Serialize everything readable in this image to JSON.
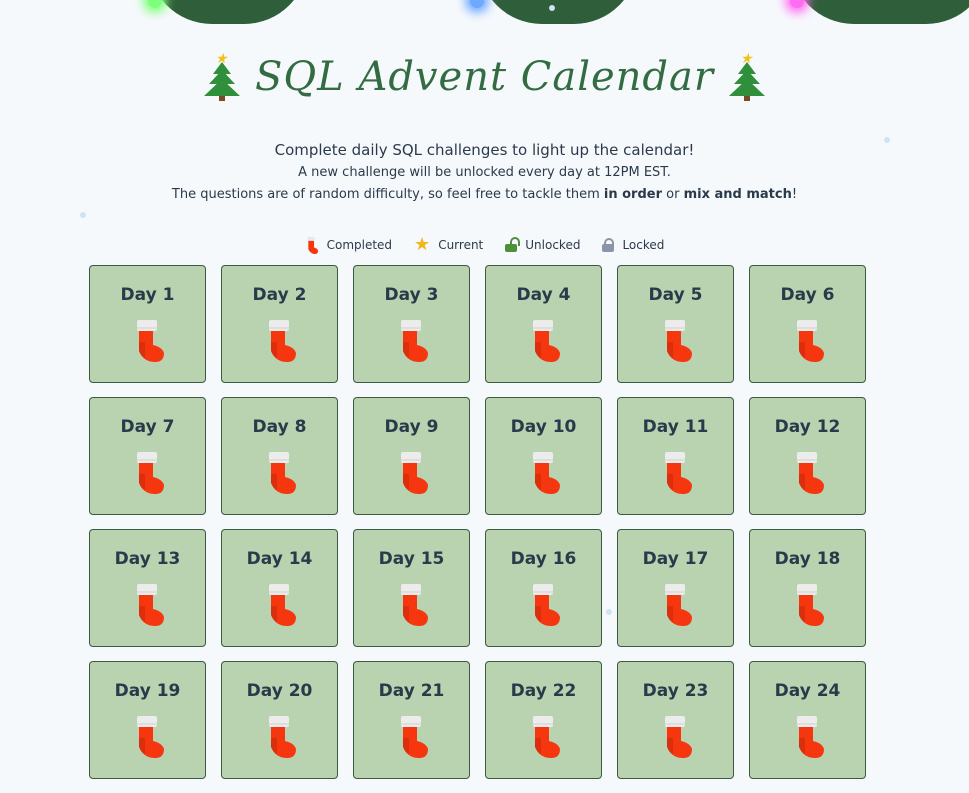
{
  "header": {
    "title": "SQL Advent Calendar",
    "subtitle": "Complete daily SQL challenges to light up the calendar!",
    "unlock_note": "A new challenge will be unlocked every day at 12PM EST.",
    "difficulty_note": {
      "prefix": "The questions are of random difficulty, so feel free to tackle them ",
      "emph1": "in order",
      "middle": " or ",
      "emph2": "mix and match",
      "suffix": "!"
    }
  },
  "legend": [
    {
      "label": "Completed",
      "icon": "stocking-icon"
    },
    {
      "label": "Current",
      "icon": "star-icon"
    },
    {
      "label": "Unlocked",
      "icon": "unlocked-icon"
    },
    {
      "label": "Locked",
      "icon": "locked-icon"
    }
  ],
  "colors": {
    "cell_bg": "#b9d3b0",
    "title": "#336b42",
    "stocking": "#f5360f"
  },
  "days": [
    {
      "label": "Day 1",
      "status": "completed"
    },
    {
      "label": "Day 2",
      "status": "completed"
    },
    {
      "label": "Day 3",
      "status": "completed"
    },
    {
      "label": "Day 4",
      "status": "completed"
    },
    {
      "label": "Day 5",
      "status": "completed"
    },
    {
      "label": "Day 6",
      "status": "completed"
    },
    {
      "label": "Day 7",
      "status": "completed"
    },
    {
      "label": "Day 8",
      "status": "completed"
    },
    {
      "label": "Day 9",
      "status": "completed"
    },
    {
      "label": "Day 10",
      "status": "completed"
    },
    {
      "label": "Day 11",
      "status": "completed"
    },
    {
      "label": "Day 12",
      "status": "completed"
    },
    {
      "label": "Day 13",
      "status": "completed"
    },
    {
      "label": "Day 14",
      "status": "completed"
    },
    {
      "label": "Day 15",
      "status": "completed"
    },
    {
      "label": "Day 16",
      "status": "completed"
    },
    {
      "label": "Day 17",
      "status": "completed"
    },
    {
      "label": "Day 18",
      "status": "completed"
    },
    {
      "label": "Day 19",
      "status": "completed"
    },
    {
      "label": "Day 20",
      "status": "completed"
    },
    {
      "label": "Day 21",
      "status": "completed"
    },
    {
      "label": "Day 22",
      "status": "completed"
    },
    {
      "label": "Day 23",
      "status": "completed"
    },
    {
      "label": "Day 24",
      "status": "completed"
    }
  ]
}
